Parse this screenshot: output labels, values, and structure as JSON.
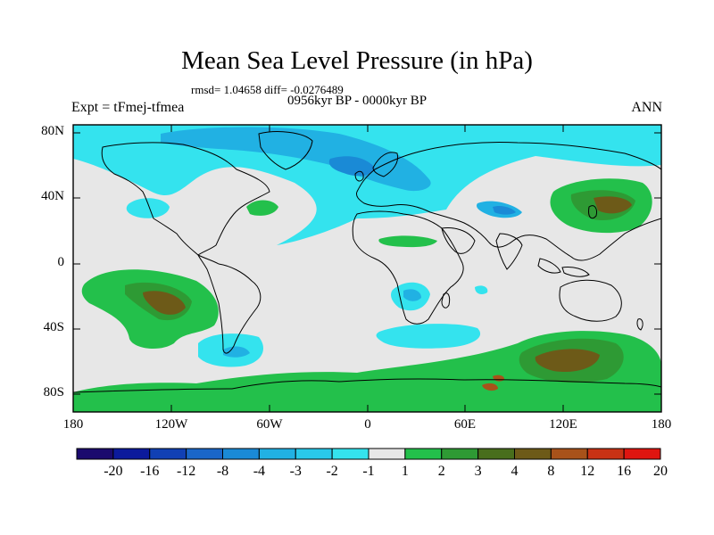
{
  "title": "Mean Sea Level Pressure (in hPa)",
  "stats": "rmsd= 1.04658  diff= -0.0276489",
  "experiment": "Expt = tFmej-tfmea",
  "period": "0956kyr BP - 0000kyr BP",
  "season": "ANN",
  "lat_labels": [
    "80N",
    "40N",
    "0",
    "40S",
    "80S"
  ],
  "lon_labels": [
    "180",
    "120W",
    "60W",
    "0",
    "60E",
    "120E",
    "180"
  ],
  "colorbar": {
    "labels": [
      "-20",
      "-16",
      "-12",
      "-8",
      "-4",
      "-3",
      "-2",
      "-1",
      "1",
      "2",
      "3",
      "4",
      "8",
      "12",
      "16",
      "20"
    ],
    "colors": [
      "#1b0a6e",
      "#0c1a9c",
      "#1140b4",
      "#1a66c8",
      "#1a8ad6",
      "#21b1e3",
      "#29c9ea",
      "#34e3ee",
      "#e7e7e7",
      "#23c04b",
      "#2e9a34",
      "#486e1c",
      "#6d5a18",
      "#a8521a",
      "#c83214",
      "#df1510"
    ]
  },
  "colors": {
    "background": "#e7e7e7",
    "neg1": "#34e3ee",
    "neg2": "#21b1e3",
    "neg3": "#1a8ad6",
    "neg4": "#1a66c8",
    "pos1": "#23c04b",
    "pos2": "#2e9a34",
    "pos3": "#6d5a18",
    "pos4": "#a8521a"
  }
}
